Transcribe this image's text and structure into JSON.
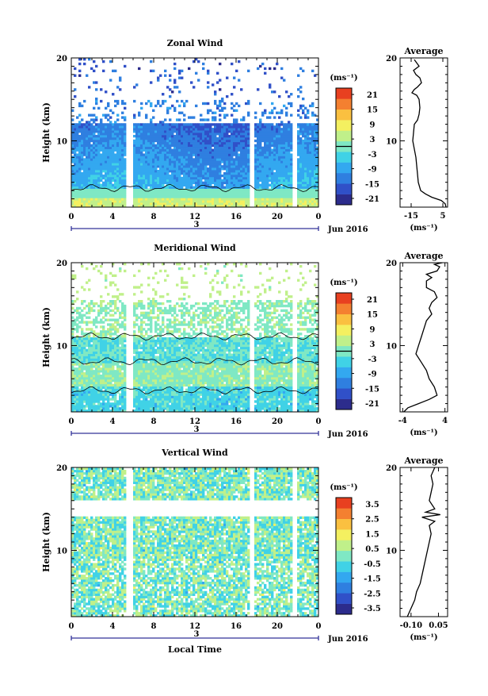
{
  "chart_data": [
    {
      "type": "heatmap",
      "title": "Zonal Wind",
      "ylabel": "Height (km)",
      "xlabel": "",
      "xlim": [
        0,
        24
      ],
      "ylim": [
        2,
        20
      ],
      "x_ticks": [
        "0",
        "4",
        "8",
        "12",
        "16",
        "20",
        "0"
      ],
      "y_ticks": [
        "10",
        "20"
      ],
      "date_label": "Jun 2016",
      "day_label": "3",
      "colorbar": {
        "unit": "(ms⁻¹)",
        "labels": [
          "21",
          "15",
          "9",
          "3",
          "-3",
          "-9",
          "-15",
          "-21"
        ],
        "range": [
          -24,
          24
        ],
        "contour_at": 0
      },
      "gaps_hours": [
        5.7,
        17.5,
        21.7
      ],
      "profile": {
        "title": "Average",
        "xlabel": "(ms⁻¹)",
        "x_ticks": [
          "-15",
          "5"
        ],
        "x_tick_values": [
          -15,
          5
        ],
        "xlim": [
          -22,
          8
        ],
        "y_ticks": [
          "10",
          "20"
        ],
        "points": [
          [
            7.0,
            2
          ],
          [
            6.5,
            2.4
          ],
          [
            4.0,
            2.8
          ],
          [
            -2.0,
            3.2
          ],
          [
            -6.0,
            3.6
          ],
          [
            -9.0,
            4.0
          ],
          [
            -10.5,
            5
          ],
          [
            -11.0,
            6
          ],
          [
            -11.5,
            7
          ],
          [
            -12.0,
            8
          ],
          [
            -13.0,
            9
          ],
          [
            -14.0,
            10
          ],
          [
            -13.5,
            11
          ],
          [
            -13.0,
            12
          ],
          [
            -11.0,
            12.5
          ],
          [
            -10.0,
            13.2
          ],
          [
            -9.5,
            14
          ],
          [
            -10.0,
            15
          ],
          [
            -11.5,
            15.5
          ],
          [
            -14.5,
            15.8
          ],
          [
            -13.0,
            16.2
          ],
          [
            -11.0,
            16.5
          ],
          [
            -8.5,
            17
          ],
          [
            -9.5,
            17.6
          ],
          [
            -12.0,
            18
          ],
          [
            -13.5,
            18.5
          ],
          [
            -10.0,
            19
          ],
          [
            -11.5,
            19.4
          ],
          [
            -13.0,
            19.8
          ]
        ]
      }
    },
    {
      "type": "heatmap",
      "title": "Meridional Wind",
      "ylabel": "Height (km)",
      "xlabel": "",
      "xlim": [
        0,
        24
      ],
      "ylim": [
        2,
        20
      ],
      "x_ticks": [
        "0",
        "4",
        "8",
        "12",
        "16",
        "20",
        "0"
      ],
      "y_ticks": [
        "10",
        "20"
      ],
      "date_label": "Jun 2016",
      "day_label": "3",
      "colorbar": {
        "unit": "(ms⁻¹)",
        "labels": [
          "21",
          "15",
          "9",
          "3",
          "-3",
          "-9",
          "-15",
          "-21"
        ],
        "range": [
          -24,
          24
        ],
        "contour_at": 0
      },
      "gaps_hours": [
        5.7,
        17.5,
        21.7
      ],
      "profile": {
        "title": "Average",
        "xlabel": "(ms⁻¹)",
        "x_ticks": [
          "-4",
          "4"
        ],
        "x_tick_values": [
          -4,
          4
        ],
        "xlim": [
          -4.5,
          4.5
        ],
        "y_ticks": [
          "10",
          "20"
        ],
        "points": [
          [
            -3.8,
            2
          ],
          [
            -3.0,
            2.5
          ],
          [
            -1.0,
            3.0
          ],
          [
            1.0,
            3.5
          ],
          [
            2.5,
            4.0
          ],
          [
            2.0,
            5
          ],
          [
            1.0,
            6
          ],
          [
            0.5,
            7
          ],
          [
            -0.5,
            8
          ],
          [
            -1.5,
            9
          ],
          [
            -1.0,
            10
          ],
          [
            -0.5,
            11
          ],
          [
            0.0,
            12
          ],
          [
            0.5,
            13
          ],
          [
            1.5,
            13.8
          ],
          [
            1.0,
            14.5
          ],
          [
            1.5,
            15.2
          ],
          [
            2.5,
            15.8
          ],
          [
            2.0,
            16.5
          ],
          [
            0.5,
            17
          ],
          [
            0.5,
            17.8
          ],
          [
            1.5,
            18.2
          ],
          [
            0.5,
            18.6
          ],
          [
            2.5,
            19.0
          ],
          [
            3.0,
            19.5
          ],
          [
            2.0,
            19.8
          ],
          [
            3.5,
            20
          ]
        ]
      }
    },
    {
      "type": "heatmap",
      "title": "Vertical Wind",
      "ylabel": "Height (km)",
      "xlabel": "Local Time",
      "xlim": [
        0,
        24
      ],
      "ylim": [
        2,
        20
      ],
      "x_ticks": [
        "0",
        "4",
        "8",
        "12",
        "16",
        "20",
        "0"
      ],
      "y_ticks": [
        "10",
        "20"
      ],
      "date_label": "Jun 2016",
      "day_label": "3",
      "colorbar": {
        "unit": "(ms⁻¹)",
        "labels": [
          "3.5",
          "2.5",
          "1.5",
          "0.5",
          "-0.5",
          "-1.5",
          "-2.5",
          "-3.5"
        ],
        "range": [
          -4,
          4
        ],
        "contour_at": null
      },
      "gaps_hours": [
        5.7,
        17.5,
        21.7
      ],
      "profile": {
        "title": "Average",
        "xlabel": "(ms⁻¹)",
        "x_ticks": [
          "-0.10",
          "0.05"
        ],
        "x_tick_values": [
          -0.1,
          0.05
        ],
        "xlim": [
          -0.16,
          0.1
        ],
        "y_ticks": [
          "10",
          "20"
        ],
        "points": [
          [
            -0.12,
            2
          ],
          [
            -0.1,
            3
          ],
          [
            -0.08,
            4
          ],
          [
            -0.07,
            5
          ],
          [
            -0.05,
            6
          ],
          [
            -0.04,
            7
          ],
          [
            -0.03,
            8
          ],
          [
            -0.02,
            9
          ],
          [
            -0.01,
            10
          ],
          [
            0.0,
            11
          ],
          [
            0.01,
            12
          ],
          [
            0.0,
            13
          ],
          [
            0.03,
            13.5
          ],
          [
            -0.04,
            14.0
          ],
          [
            0.06,
            14.3
          ],
          [
            -0.02,
            14.6
          ],
          [
            0.03,
            15
          ],
          [
            0.0,
            16
          ],
          [
            0.01,
            17
          ],
          [
            0.02,
            18
          ],
          [
            0.01,
            19
          ],
          [
            0.03,
            20
          ]
        ]
      }
    }
  ]
}
